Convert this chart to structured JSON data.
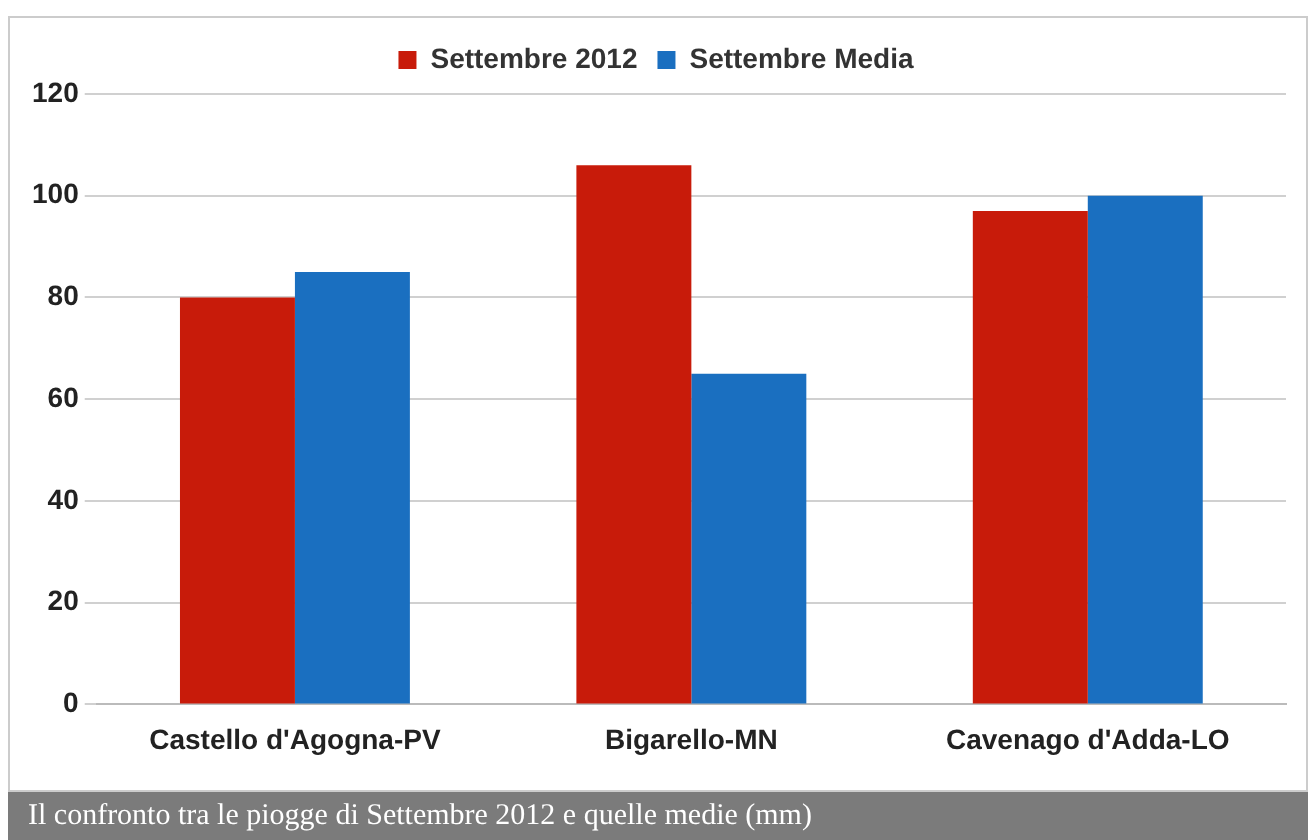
{
  "chart_data": {
    "type": "bar",
    "categories": [
      "Castello d'Agogna-PV",
      "Bigarello-MN",
      "Cavenago d'Adda-LO"
    ],
    "series": [
      {
        "name": "Settembre 2012",
        "color": "#c81b0a",
        "values": [
          80,
          106,
          97
        ]
      },
      {
        "name": "Settembre Media",
        "color": "#1a6fc0",
        "values": [
          85,
          65,
          100
        ]
      }
    ],
    "ylim": [
      0,
      120
    ],
    "yticks": [
      0,
      20,
      40,
      60,
      80,
      100,
      120
    ],
    "grid": "y",
    "legend": "top",
    "annotations": [
      "Il confronto tra le piogge di Settembre 2012 e quelle medie (mm)"
    ]
  }
}
